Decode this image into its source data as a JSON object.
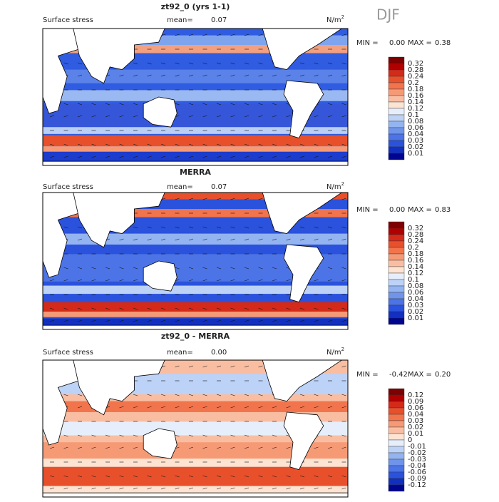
{
  "season": "DJF",
  "panels": [
    {
      "title": "zt92_0 (yrs 1-1)",
      "field": "Surface stress",
      "mean_label": "mean=",
      "mean": "0.07",
      "units": "N/m",
      "units_exp": "2",
      "min_label": "MIN =",
      "min": "0.00",
      "max_label": "MAX =",
      "max": "0.38",
      "colorbar": {
        "labels": [
          "0.32",
          "0.28",
          "0.24",
          "0.2",
          "0.18",
          "0.16",
          "0.14",
          "0.12",
          "0.1",
          "0.08",
          "0.06",
          "0.04",
          "0.03",
          "0.02",
          "0.01"
        ],
        "colors": [
          "#7f0000",
          "#b00000",
          "#d42a1a",
          "#e8502c",
          "#f2744c",
          "#f69a76",
          "#f9bea2",
          "#fde3d2",
          "#e6eefc",
          "#bcd2f7",
          "#93b4f0",
          "#6f94ea",
          "#4c74e6",
          "#2a52dc",
          "#1230c0",
          "#00058f"
        ]
      }
    },
    {
      "title": "MERRA",
      "field": "Surface stress",
      "mean_label": "mean=",
      "mean": "0.07",
      "units": "N/m",
      "units_exp": "2",
      "min_label": "MIN =",
      "min": "0.00",
      "max_label": "MAX =",
      "max": "0.83",
      "colorbar": {
        "labels": [
          "0.32",
          "0.28",
          "0.24",
          "0.2",
          "0.18",
          "0.16",
          "0.14",
          "0.12",
          "0.1",
          "0.08",
          "0.06",
          "0.04",
          "0.03",
          "0.02",
          "0.01"
        ],
        "colors": [
          "#7f0000",
          "#b00000",
          "#d42a1a",
          "#e8502c",
          "#f2744c",
          "#f69a76",
          "#f9bea2",
          "#fde3d2",
          "#e6eefc",
          "#bcd2f7",
          "#93b4f0",
          "#6f94ea",
          "#4c74e6",
          "#2a52dc",
          "#1230c0",
          "#00058f"
        ]
      }
    },
    {
      "title": "zt92_0 - MERRA",
      "field": "Surface stress",
      "mean_label": "mean=",
      "mean": "0.00",
      "units": "N/m",
      "units_exp": "2",
      "min_label": "MIN =",
      "min": "-0.42",
      "max_label": "MAX =",
      "max": "0.20",
      "colorbar": {
        "labels": [
          "0.12",
          "0.09",
          "0.06",
          "0.04",
          "0.03",
          "0.02",
          "0.01",
          "0",
          "-0.01",
          "-0.02",
          "-0.03",
          "-0.04",
          "-0.06",
          "-0.09",
          "-0.12"
        ],
        "colors": [
          "#7f0000",
          "#b00000",
          "#d42a1a",
          "#e8502c",
          "#f2744c",
          "#f69a76",
          "#f9bea2",
          "#fde3d2",
          "#e6eefc",
          "#bcd2f7",
          "#93b4f0",
          "#6f94ea",
          "#4c74e6",
          "#2a52dc",
          "#1230c0",
          "#00058f"
        ]
      }
    }
  ]
}
